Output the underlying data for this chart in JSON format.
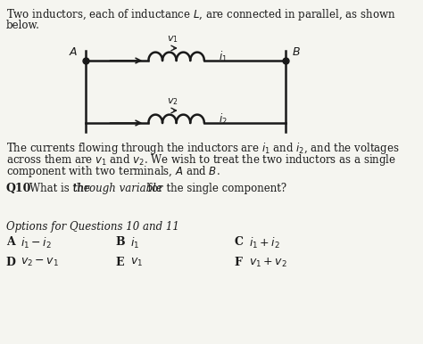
{
  "title_text": "Two inductors, each of inductance $L$, are connected in parallel, as shown\nbelow.",
  "body_text": "The currents flowing through the inductors are $i_1$ and $i_2$, and the voltages\nacross them are $v_1$ and $v_2$. We wish to treat the two inductors as a single\ncomponent with two terminals, $A$ and $B$.",
  "q10_bold": "Q10",
  "q10_text": "  What is the \\textit{through variable} for the single component?",
  "options_header": "\\textit{Options for Questions 10 and 11}",
  "options": [
    [
      "A",
      "$i_1 - i_2$",
      "B",
      "$i_1$",
      "C",
      "$i_1 + i_2$"
    ],
    [
      "D",
      "$v_2 - v_1$",
      "E",
      "$v_1$",
      "F",
      "$v_1 + v_2$"
    ]
  ],
  "bg_color": "#f5f5f0",
  "text_color": "#1a1a1a",
  "circuit_box_color": "#1a1a1a",
  "inductor_color": "#1a1a1a"
}
